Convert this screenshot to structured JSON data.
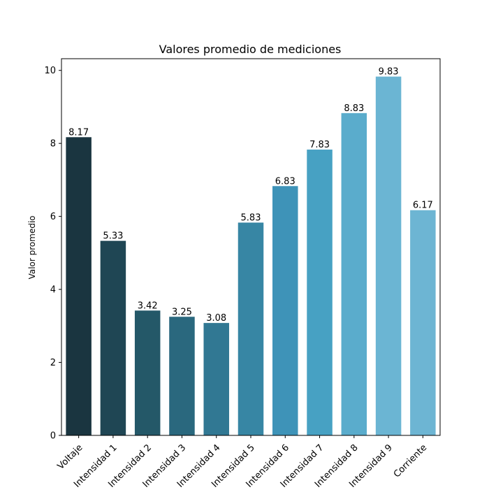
{
  "chart_data": {
    "type": "bar",
    "title": "Valores promedio de mediciones",
    "xlabel": "",
    "ylabel": "Valor promedio",
    "categories": [
      "Voltaje",
      "Intensidad 1",
      "Intensidad 2",
      "Intensidad 3",
      "Intensidad 4",
      "Intensidad 5",
      "Intensidad 6",
      "Intensidad 7",
      "Intensidad 8",
      "Intensidad 9",
      "Corriente"
    ],
    "values": [
      8.17,
      5.33,
      3.42,
      3.25,
      3.08,
      5.83,
      6.83,
      7.83,
      8.83,
      9.83,
      6.17
    ],
    "value_labels": [
      "8.17",
      "5.33",
      "3.42",
      "3.25",
      "3.08",
      "5.83",
      "6.83",
      "7.83",
      "8.83",
      "9.83",
      "6.17"
    ],
    "ylim": [
      0,
      10.32
    ],
    "yticks": [
      0,
      2,
      4,
      6,
      8,
      10
    ],
    "ytick_labels": [
      "0",
      "2",
      "4",
      "6",
      "8",
      "10"
    ],
    "grid": false,
    "legend": "none",
    "colors": [
      "#1a3540",
      "#1f4654",
      "#245868",
      "#2a687e",
      "#317893",
      "#3786a4",
      "#3e93b8",
      "#47a1c3",
      "#5aaccc",
      "#6bb5d3",
      "#6db5d3"
    ]
  }
}
